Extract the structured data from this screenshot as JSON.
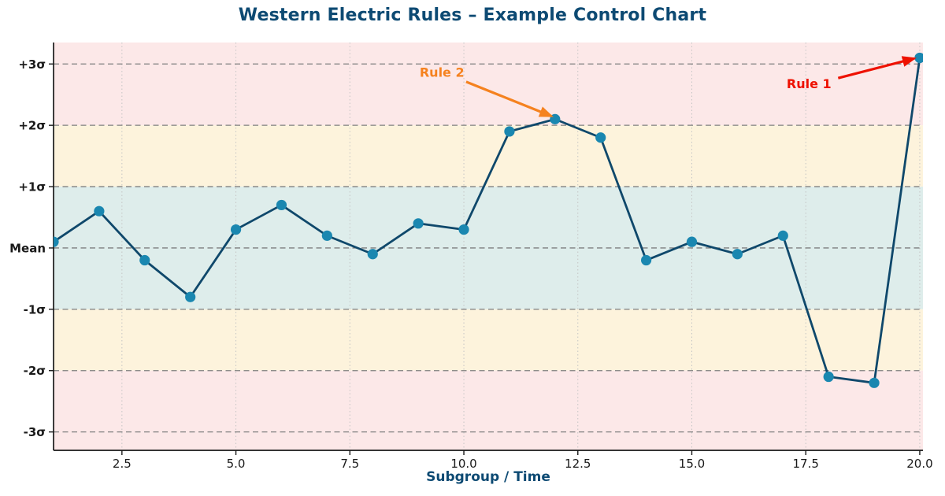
{
  "header": {
    "title": "Western Electric Rules – Example Control Chart"
  },
  "chart_data": {
    "type": "line",
    "title": "Western Electric Rules – Example Control Chart",
    "xlabel": "Subgroup / Time",
    "ylabel": "",
    "series_name": "subgroup-values",
    "x": [
      1,
      2,
      3,
      4,
      5,
      6,
      7,
      8,
      9,
      10,
      11,
      12,
      13,
      14,
      15,
      16,
      17,
      18,
      19,
      20
    ],
    "values": [
      0.1,
      0.6,
      -0.2,
      -0.8,
      0.3,
      0.7,
      0.2,
      -0.1,
      0.4,
      0.3,
      1.9,
      2.1,
      1.8,
      -0.2,
      0.1,
      -0.1,
      0.2,
      -2.1,
      -2.2,
      3.1
    ],
    "xlim": [
      1,
      20.07
    ],
    "ylim": [
      -3.3,
      3.35
    ],
    "xticks": [
      2.5,
      5,
      7.5,
      10,
      12.5,
      15,
      17.5,
      20
    ],
    "xtick_labels": [
      "2.5",
      "5.0",
      "7.5",
      "10.0",
      "12.5",
      "15.0",
      "17.5",
      "20.0"
    ],
    "yticks": [
      {
        "value": 3,
        "label": "+3σ"
      },
      {
        "value": 2,
        "label": "+2σ"
      },
      {
        "value": 1,
        "label": "+1σ"
      },
      {
        "value": 0,
        "label": "Mean"
      },
      {
        "value": -1,
        "label": "-1σ"
      },
      {
        "value": -2,
        "label": "-2σ"
      },
      {
        "value": -3,
        "label": "-3σ"
      }
    ],
    "sigma_lines": [
      3,
      2,
      1,
      0,
      -1,
      -2,
      -3
    ],
    "zones": [
      {
        "name": "critical-upper",
        "from": 2,
        "to": 3.35,
        "color": "#fce8e8"
      },
      {
        "name": "warning-upper",
        "from": 1,
        "to": 2,
        "color": "#fdf3dc"
      },
      {
        "name": "safe",
        "from": -1,
        "to": 1,
        "color": "#deedeb"
      },
      {
        "name": "warning-lower",
        "from": -2,
        "to": -1,
        "color": "#fdf3dc"
      },
      {
        "name": "critical-lower",
        "from": -3.3,
        "to": -2,
        "color": "#fce8e8"
      }
    ],
    "grid": {
      "vertical_style": "dotted",
      "horizontal_style": "dashed",
      "vertical_color": "#c4c4c4",
      "horizontal_color": "#7f7f7f"
    },
    "colors": {
      "line": "#0f486b",
      "marker": "#1a87b0",
      "title": "#0d4a73",
      "xlabel": "#0d4a73",
      "tick_text": "#1a1a1a",
      "spine": "#1a1a1a"
    },
    "annotations": [
      {
        "label": "Rule 2",
        "color": "#f5821f",
        "text_at": [
          9.52,
          2.87
        ],
        "arrow_from": [
          10.05,
          2.71
        ],
        "arrow_to": [
          11.92,
          2.15
        ],
        "points_to_x": 12
      },
      {
        "label": "Rule 1",
        "color": "#ee1100",
        "text_at": [
          17.57,
          2.68
        ],
        "arrow_from": [
          18.21,
          2.77
        ],
        "arrow_to": [
          19.88,
          3.09
        ],
        "points_to_x": 20
      }
    ],
    "legend": null
  }
}
